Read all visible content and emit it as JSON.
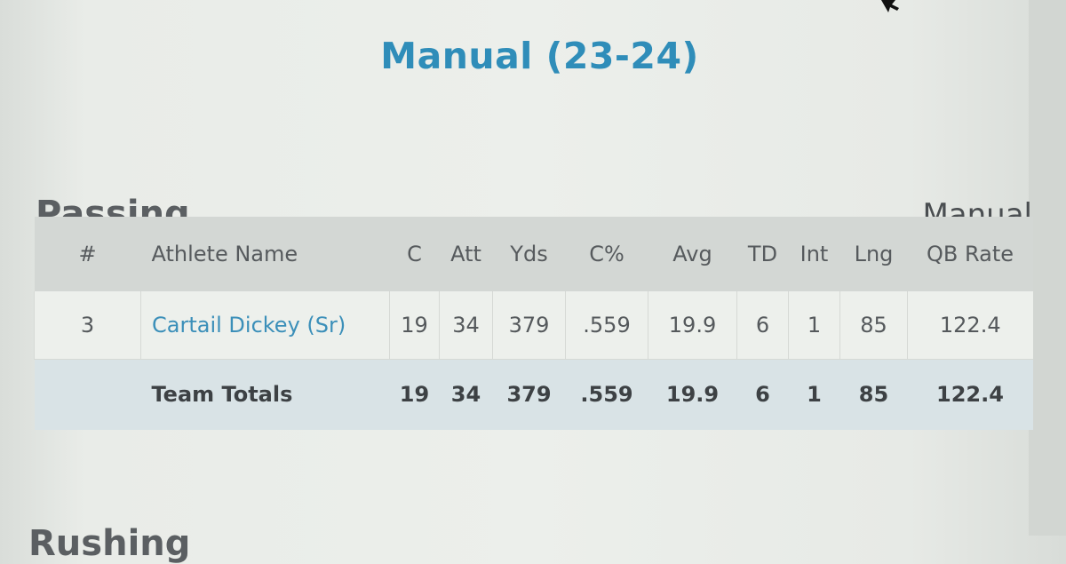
{
  "page": {
    "team_title": "Manual (23-24)",
    "passing_title": "Passing",
    "rushing_title": "Rushing",
    "team_label": "Manual"
  },
  "passing": {
    "columns": [
      "#",
      "Athlete Name",
      "C",
      "Att",
      "Yds",
      "C%",
      "Avg",
      "TD",
      "Int",
      "Lng",
      "QB Rate"
    ],
    "athlete": {
      "number": "3",
      "name": "Cartail Dickey (Sr)",
      "c": "19",
      "att": "34",
      "yds": "379",
      "cpct": ".559",
      "avg": "19.9",
      "td": "6",
      "int": "1",
      "lng": "85",
      "qb_rate": "122.4"
    },
    "totals": {
      "label": "Team Totals",
      "c": "19",
      "att": "34",
      "yds": "379",
      "cpct": ".559",
      "avg": "19.9",
      "td": "6",
      "int": "1",
      "lng": "85",
      "qb_rate": "122.4"
    }
  },
  "icons": {
    "cursor": "arrow-cursor-icon"
  },
  "colors": {
    "title": "#2f8db9",
    "link": "#3b8fb9",
    "header_bg": "#d3d7d4",
    "totals_bg": "#d9e3e6"
  }
}
